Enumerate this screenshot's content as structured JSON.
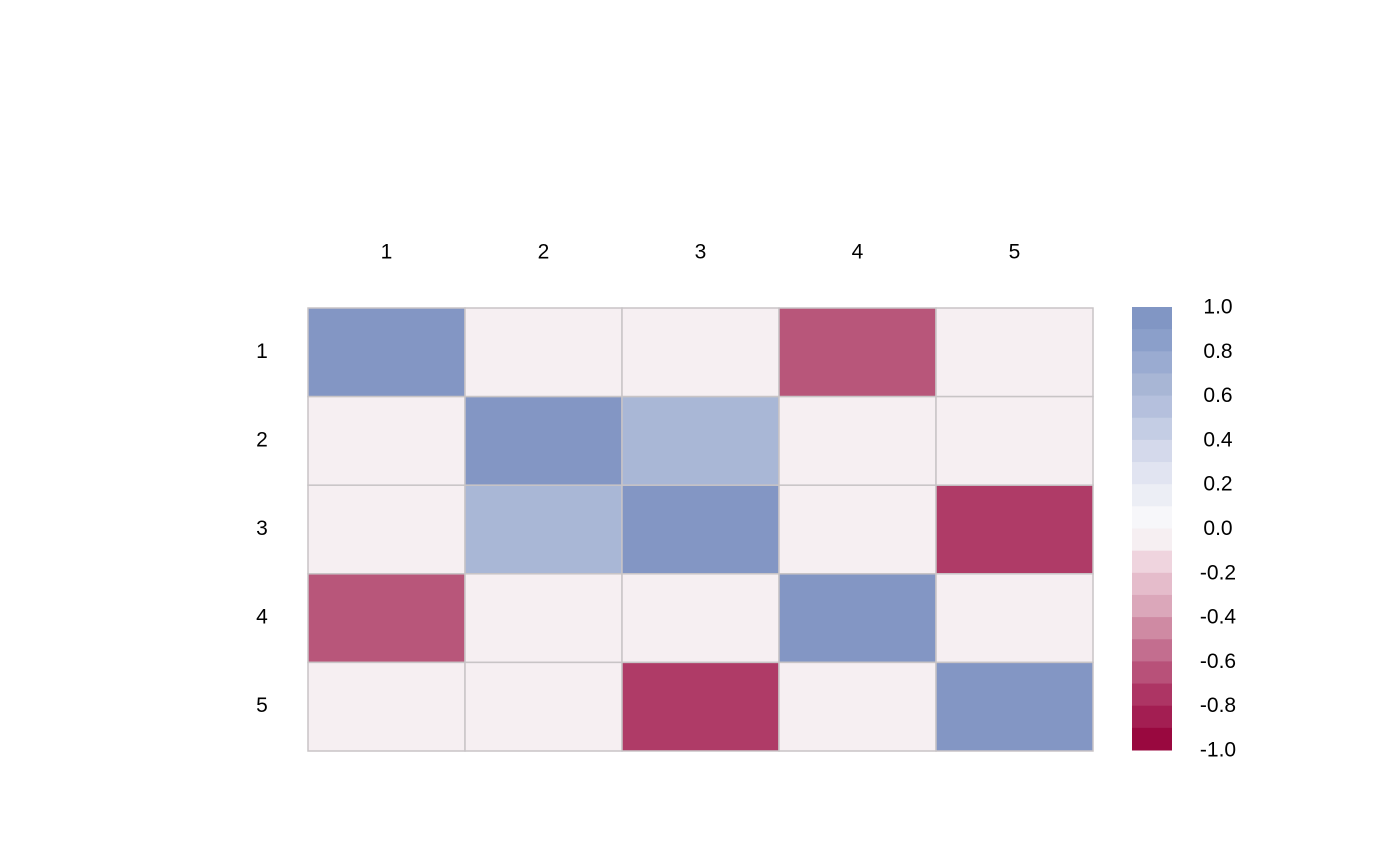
{
  "chart_data": {
    "type": "heatmap",
    "title": "",
    "xlabel": "",
    "ylabel": "",
    "columns": [
      "1",
      "2",
      "3",
      "4",
      "5"
    ],
    "rows": [
      "1",
      "2",
      "3",
      "4",
      "5"
    ],
    "values": [
      [
        1.0,
        0.0,
        0.0,
        -0.6,
        0.0
      ],
      [
        0.0,
        1.0,
        0.5,
        0.0,
        0.0
      ],
      [
        0.0,
        0.5,
        1.0,
        0.0,
        -0.7
      ],
      [
        -0.6,
        0.0,
        0.0,
        1.0,
        0.0
      ],
      [
        0.0,
        0.0,
        -0.7,
        0.0,
        1.0
      ]
    ],
    "range": [
      -1.0,
      1.0
    ],
    "colorbar": {
      "ticks": [
        "1.0",
        "0.8",
        "0.6",
        "0.4",
        "0.2",
        "0.0",
        "-0.2",
        "-0.4",
        "-0.6",
        "-0.8",
        "-1.0"
      ],
      "colors": [
        "#8196c4",
        "#8b9fca",
        "#9aabd1",
        "#a8b6d5",
        "#b5c0dd",
        "#c4cde4",
        "#d4d9eb",
        "#e1e4f1",
        "#eceef5",
        "#f7f7fa",
        "#f6eff2",
        "#efd4de",
        "#e5bccb",
        "#dba7ba",
        "#cf8aa3",
        "#c36e8f",
        "#b85179",
        "#ad3564",
        "#a31e52",
        "#99083f"
      ]
    },
    "cell_colors": {
      "1.0": "#8396c4",
      "0.5": "#a9b7d6",
      "0.0": "#f6eff2",
      "-0.6": "#b8567a",
      "-0.7": "#af3b67"
    },
    "grid_color": "#c8c4c6"
  }
}
